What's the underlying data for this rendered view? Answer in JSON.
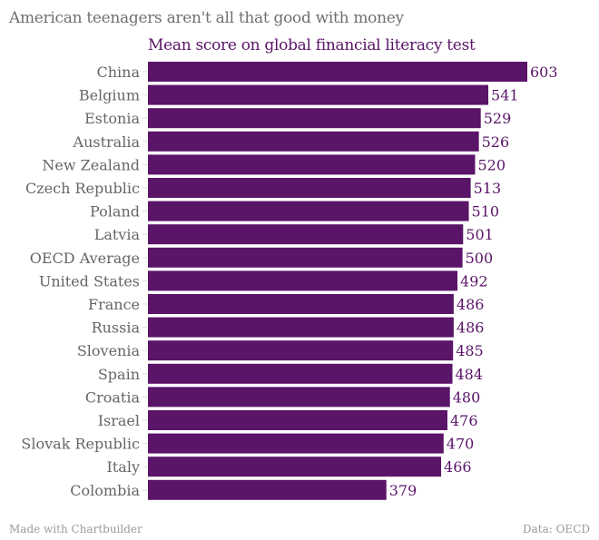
{
  "title": "American teenagers aren't all that good with money",
  "footer": {
    "credit": "Made with Chartbuilder",
    "source": "Data: OECD"
  },
  "colors": {
    "bar": "#5a1468",
    "label": "#666666",
    "value": "#5a1468"
  },
  "chart_data": {
    "type": "bar",
    "orientation": "horizontal",
    "title": "Mean score on global financial literacy test",
    "categories": [
      "China",
      "Belgium",
      "Estonia",
      "Australia",
      "New Zealand",
      "Czech Republic",
      "Poland",
      "Latvia",
      "OECD Average",
      "United States",
      "France",
      "Russia",
      "Slovenia",
      "Spain",
      "Croatia",
      "Israel",
      "Slovak Republic",
      "Italy",
      "Colombia"
    ],
    "values": [
      603,
      541,
      529,
      526,
      520,
      513,
      510,
      501,
      500,
      492,
      486,
      486,
      485,
      484,
      480,
      476,
      470,
      466,
      379
    ],
    "xlim": [
      0,
      603
    ],
    "grid": false
  }
}
